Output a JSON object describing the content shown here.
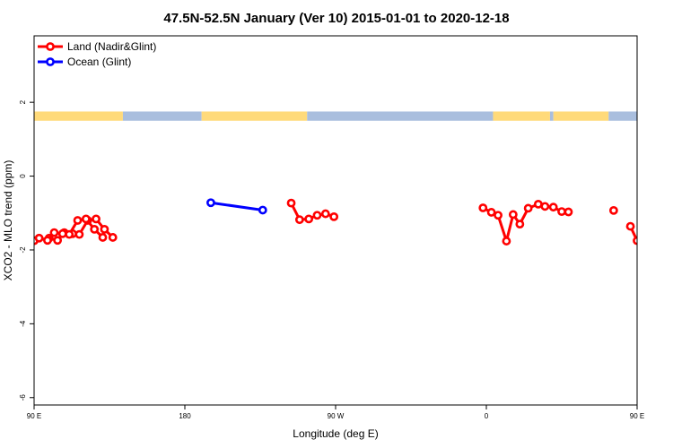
{
  "chart_data": {
    "type": "line",
    "title": "47.5N-52.5N January (Ver 10)   2015-01-01 to 2020-12-18",
    "xlabel": "Longitude (deg E)",
    "ylabel": "XCO2 - MLO trend (ppm)",
    "xlim": [
      90,
      450
    ],
    "ylim": [
      -6.2,
      3.8
    ],
    "x_ticks": [
      {
        "value": 90,
        "label": "90 E"
      },
      {
        "value": 180,
        "label": "180"
      },
      {
        "value": 270,
        "label": "90 W"
      },
      {
        "value": 360,
        "label": "0"
      },
      {
        "value": 450,
        "label": "90 E"
      }
    ],
    "y_ticks": [
      {
        "value": 2,
        "label": "2"
      },
      {
        "value": 0,
        "label": "0"
      },
      {
        "value": -2,
        "label": "-2"
      },
      {
        "value": -4,
        "label": "-4"
      },
      {
        "value": -6,
        "label": "-6"
      }
    ],
    "land_ocean_strip": {
      "y_range": [
        1.5,
        1.75
      ],
      "land_color": "#FFDA7A",
      "ocean_color": "#A9BEDE",
      "segments": [
        {
          "kind": "land",
          "x": [
            90,
            143
          ]
        },
        {
          "kind": "ocean",
          "x": [
            143,
            190
          ]
        },
        {
          "kind": "land",
          "x": [
            190,
            253
          ]
        },
        {
          "kind": "ocean",
          "x": [
            253,
            364
          ]
        },
        {
          "kind": "land",
          "x": [
            364,
            398
          ]
        },
        {
          "kind": "ocean",
          "x": [
            398,
            400
          ]
        },
        {
          "kind": "land",
          "x": [
            400,
            433
          ]
        },
        {
          "kind": "ocean",
          "x": [
            433,
            450
          ]
        }
      ]
    },
    "legend_position": "top-left",
    "series": [
      {
        "name": "Land (Nadir&Glint)",
        "color": "#FF0000",
        "points": [
          [
            90,
            -1.75
          ],
          [
            99,
            -1.68
          ],
          [
            104,
            -1.74
          ],
          [
            108,
            -1.53
          ],
          [
            113,
            -1.56
          ],
          [
            117,
            -1.58
          ],
          [
            122,
            -1.2
          ],
          [
            127,
            -1.16
          ],
          [
            132,
            -1.44
          ],
          [
            137,
            -1.66
          ],
          [
            null,
            null
          ],
          [
            243.5,
            -0.73
          ],
          [
            248.5,
            -1.18
          ],
          [
            254,
            -1.16
          ],
          [
            259,
            -1.06
          ],
          [
            264,
            -1.02
          ],
          [
            269,
            -1.1
          ],
          [
            null,
            null
          ],
          [
            358,
            -0.86
          ],
          [
            363,
            -0.98
          ],
          [
            367,
            -1.06
          ],
          [
            372,
            -1.76
          ],
          [
            376,
            -1.04
          ],
          [
            380,
            -1.3
          ],
          [
            385,
            -0.87
          ],
          [
            391,
            -0.76
          ],
          [
            395,
            -0.82
          ],
          [
            400,
            -0.84
          ],
          [
            405,
            -0.96
          ],
          [
            409,
            -0.97
          ],
          [
            null,
            null
          ],
          [
            436,
            -0.93
          ],
          [
            null,
            null
          ],
          [
            446,
            -1.36
          ],
          [
            450,
            -1.75
          ]
        ]
      },
      {
        "name": "Ocean (Glint)",
        "color": "#0000FF",
        "points": [
          [
            195.5,
            -0.72
          ],
          [
            226.5,
            -0.92
          ]
        ]
      }
    ]
  },
  "wrap_series": {
    "color": "#FF0000",
    "points": [
      [
        446,
        -1.36
      ],
      [
        450,
        -1.75
      ],
      [
        453,
        -1.68
      ],
      [
        458,
        -1.74
      ],
      [
        462,
        -1.53
      ],
      [
        467,
        -1.56
      ],
      [
        471,
        -1.58
      ],
      [
        476,
        -1.2
      ],
      [
        481,
        -1.16
      ],
      [
        486,
        -1.44
      ],
      [
        491,
        -1.66
      ]
    ]
  }
}
